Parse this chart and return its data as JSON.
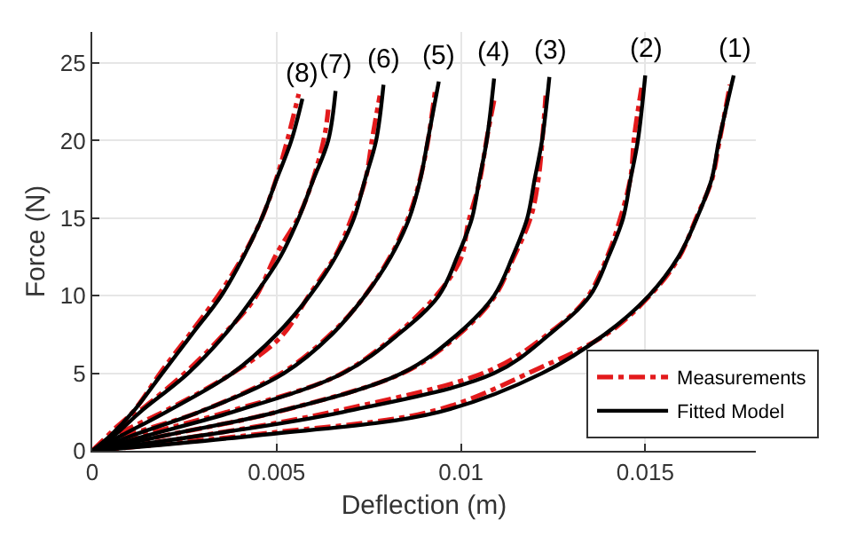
{
  "chart_data": {
    "type": "line",
    "xlabel": "Deflection (m)",
    "ylabel": "Force (N)",
    "xlim": [
      0,
      0.018
    ],
    "ylim": [
      0,
      27
    ],
    "xticks": [
      0,
      0.005,
      0.01,
      0.015
    ],
    "yticks": [
      0,
      5,
      10,
      15,
      20,
      25
    ],
    "grid": true,
    "legend": "bottom right",
    "marker": "none",
    "series": [
      {
        "name": "Measurements",
        "color": "#e31a1c",
        "line_style": "dashdot",
        "x": [
          0,
          0.0046,
          0.0093,
          0.0121,
          0.014,
          0.0152,
          0.0159,
          0.0164,
          0.0168,
          0.017,
          0.0173
        ],
        "values": [
          0,
          1.1,
          2.6,
          5.3,
          7.6,
          10.2,
          12.4,
          15.1,
          17.4,
          19.8,
          23.6
        ]
      },
      {
        "color": "#e31a1c",
        "line_style": "dashdot",
        "x": [
          0,
          0.003,
          0.0067,
          0.0108,
          0.0124,
          0.0134,
          0.014,
          0.0143,
          0.0146,
          0.0147,
          0.0149
        ],
        "values": [
          0,
          1.0,
          2.6,
          5.2,
          7.6,
          9.8,
          12.7,
          14.8,
          17.6,
          20.2,
          23.4
        ]
      },
      {
        "color": "#e31a1c",
        "line_style": "dashdot",
        "x": [
          0,
          0.002,
          0.005,
          0.0085,
          0.0099,
          0.0109,
          0.0114,
          0.0119,
          0.0121,
          0.0122,
          0.0123
        ],
        "values": [
          0,
          1.0,
          2.5,
          5.1,
          7.4,
          9.9,
          12.3,
          15.1,
          17.5,
          19.8,
          22.9
        ]
      },
      {
        "color": "#e31a1c",
        "line_style": "dashdot",
        "x": [
          0,
          0.0015,
          0.0038,
          0.0067,
          0.0083,
          0.0094,
          0.01,
          0.0102,
          0.0105,
          0.0107,
          0.0109
        ],
        "values": [
          0,
          1.1,
          2.6,
          4.9,
          7.6,
          10.2,
          12.4,
          14.7,
          17.3,
          20.1,
          22.6
        ]
      },
      {
        "color": "#e31a1c",
        "line_style": "dashdot",
        "x": [
          0,
          0.0011,
          0.0029,
          0.0052,
          0.0065,
          0.0073,
          0.0081,
          0.0086,
          0.0089,
          0.0091,
          0.0093
        ],
        "values": [
          0,
          1.1,
          2.5,
          5.1,
          7.6,
          9.7,
          12.6,
          15.2,
          17.6,
          19.9,
          23.2
        ]
      },
      {
        "color": "#e31a1c",
        "line_style": "dashdot",
        "x": [
          0,
          0.0008,
          0.002,
          0.0038,
          0.0051,
          0.0059,
          0.0066,
          0.007,
          0.0074,
          0.0076,
          0.0078
        ],
        "values": [
          0,
          1.2,
          2.6,
          5.0,
          7.3,
          10.1,
          12.6,
          14.8,
          17.4,
          20.2,
          22.9
        ]
      },
      {
        "color": "#e31a1c",
        "line_style": "dashdot",
        "x": [
          0,
          0.0006,
          0.0013,
          0.0026,
          0.0036,
          0.0044,
          0.005,
          0.0056,
          0.006,
          0.0063,
          0.0064
        ],
        "values": [
          0,
          1.3,
          2.6,
          5.2,
          7.6,
          9.8,
          12.7,
          15.1,
          17.6,
          20.3,
          22.0
        ]
      },
      {
        "color": "#e31a1c",
        "line_style": "dashdot",
        "x": [
          0,
          0.0006,
          0.0011,
          0.0019,
          0.0027,
          0.0035,
          0.0041,
          0.0046,
          0.005,
          0.0053,
          0.0056
        ],
        "values": [
          0,
          1.4,
          2.5,
          5.2,
          7.7,
          10.3,
          12.6,
          15.0,
          17.6,
          20.1,
          23.0
        ]
      },
      {
        "name": "Fitted Model",
        "color": "#000000",
        "line_style": "solid",
        "x": [
          0,
          0.0045,
          0.0094,
          0.0122,
          0.0139,
          0.0151,
          0.0159,
          0.0164,
          0.0168,
          0.017,
          0.0174
        ],
        "values": [
          0,
          1,
          2.5,
          5,
          7.5,
          10,
          12.5,
          15,
          17.5,
          20,
          24.2
        ]
      },
      {
        "color": "#000000",
        "line_style": "solid",
        "x": [
          0,
          0.003,
          0.0068,
          0.0109,
          0.0124,
          0.0135,
          0.014,
          0.0144,
          0.0146,
          0.0148,
          0.015
        ],
        "values": [
          0,
          1,
          2.5,
          5,
          7.5,
          10,
          12.5,
          15,
          17.5,
          20,
          24.2
        ]
      },
      {
        "color": "#000000",
        "line_style": "solid",
        "x": [
          0,
          0.002,
          0.005,
          0.0084,
          0.0099,
          0.0109,
          0.0114,
          0.0118,
          0.012,
          0.0122,
          0.0124
        ],
        "values": [
          0,
          1,
          2.5,
          5,
          7.5,
          10,
          12.5,
          15,
          17.5,
          20,
          24.1
        ]
      },
      {
        "color": "#000000",
        "line_style": "solid",
        "x": [
          0,
          0.0015,
          0.0038,
          0.0068,
          0.0083,
          0.0094,
          0.0099,
          0.0103,
          0.0105,
          0.0107,
          0.0109
        ],
        "values": [
          0,
          1,
          2.5,
          5,
          7.5,
          10,
          12.5,
          15,
          17.5,
          20,
          24.0
        ]
      },
      {
        "color": "#000000",
        "line_style": "solid",
        "x": [
          0,
          0.0011,
          0.0029,
          0.0052,
          0.0065,
          0.0074,
          0.0081,
          0.0086,
          0.0089,
          0.0091,
          0.0094
        ],
        "values": [
          0,
          1,
          2.5,
          5,
          7.5,
          10,
          12.5,
          15,
          17.5,
          20,
          23.8
        ]
      },
      {
        "color": "#000000",
        "line_style": "solid",
        "x": [
          0,
          0.0008,
          0.002,
          0.0038,
          0.005,
          0.0059,
          0.0066,
          0.0071,
          0.0074,
          0.0077,
          0.0079
        ],
        "values": [
          0,
          1,
          2.5,
          5,
          7.5,
          10,
          12.5,
          15,
          17.5,
          20,
          23.6
        ]
      },
      {
        "color": "#000000",
        "line_style": "solid",
        "x": [
          0,
          0.0006,
          0.0013,
          0.0026,
          0.0036,
          0.0044,
          0.0051,
          0.0056,
          0.006,
          0.0064,
          0.0066
        ],
        "values": [
          0,
          1,
          2.5,
          5,
          7.5,
          10,
          12.5,
          15,
          17.5,
          20,
          23.2
        ]
      },
      {
        "color": "#000000",
        "line_style": "solid",
        "x": [
          0,
          0.0005,
          0.0011,
          0.0019,
          0.0027,
          0.0035,
          0.0041,
          0.0046,
          0.005,
          0.0054,
          0.0057
        ],
        "values": [
          0,
          1,
          2.5,
          5,
          7.5,
          10,
          12.5,
          15,
          17.5,
          20,
          22.7
        ]
      }
    ],
    "annotations": [
      "(1)",
      "(2)",
      "(3)",
      "(4)",
      "(5)",
      "(6)",
      "(7)",
      "(8)"
    ]
  }
}
